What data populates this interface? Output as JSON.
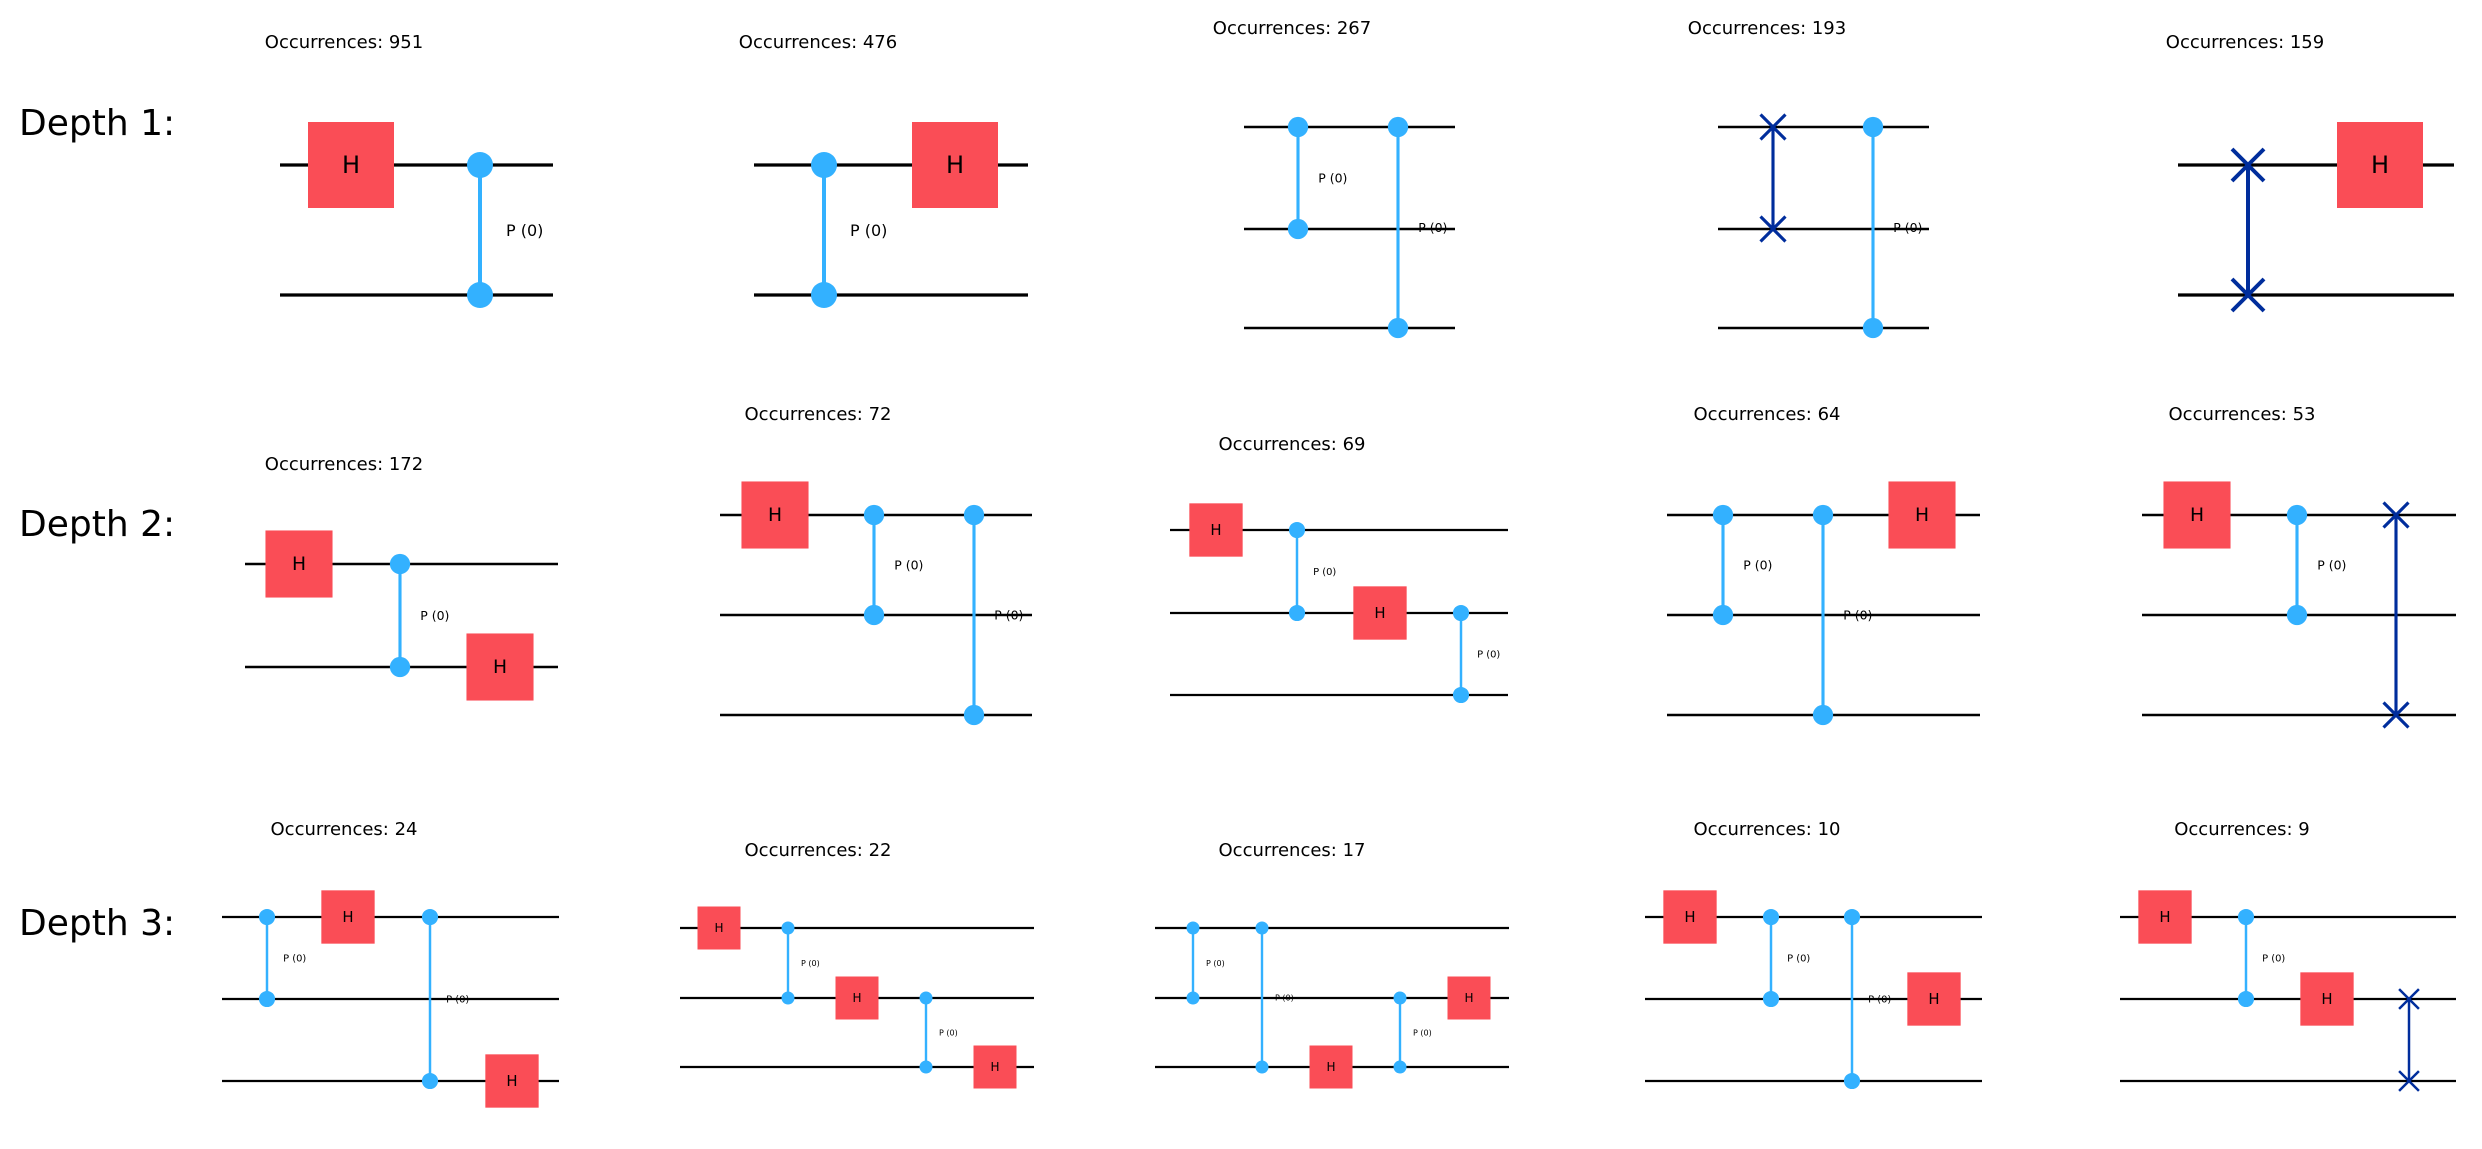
{
  "colors": {
    "wire": "#000000",
    "h_gate": "#FA4D56",
    "p_gate": "#33B1FF",
    "swap": "#002D9C"
  },
  "row_labels": [
    "Depth 1:",
    "Depth 2:",
    "Depth 3:"
  ],
  "occurrence_prefix": "Occurrences: ",
  "panels": [
    {
      "occurrences": 951,
      "qubits": 2,
      "ops": [
        {
          "g": "h",
          "q": [
            0
          ]
        },
        {
          "g": "p",
          "q": [
            0,
            1
          ],
          "label": "P (0)"
        }
      ]
    },
    {
      "occurrences": 476,
      "qubits": 2,
      "ops": [
        {
          "g": "p",
          "q": [
            0,
            1
          ],
          "label": "P (0)"
        },
        {
          "g": "h",
          "q": [
            0
          ]
        }
      ]
    },
    {
      "occurrences": 267,
      "qubits": 3,
      "ops": [
        {
          "g": "p",
          "q": [
            0,
            1
          ],
          "label": "P (0)"
        },
        {
          "g": "p",
          "q": [
            0,
            2
          ],
          "label": "P (0)"
        }
      ]
    },
    {
      "occurrences": 193,
      "qubits": 3,
      "ops": [
        {
          "g": "swap",
          "q": [
            0,
            1
          ]
        },
        {
          "g": "p",
          "q": [
            0,
            2
          ],
          "label": "P (0)"
        }
      ]
    },
    {
      "occurrences": 159,
      "qubits": 2,
      "ops": [
        {
          "g": "swap",
          "q": [
            0,
            1
          ]
        },
        {
          "g": "h",
          "q": [
            0
          ]
        }
      ]
    },
    {
      "occurrences": 172,
      "qubits": 2,
      "ops": [
        {
          "g": "h",
          "q": [
            0
          ]
        },
        {
          "g": "p",
          "q": [
            0,
            1
          ],
          "label": "P (0)"
        },
        {
          "g": "h",
          "q": [
            1
          ]
        }
      ]
    },
    {
      "occurrences": 72,
      "qubits": 3,
      "ops": [
        {
          "g": "h",
          "q": [
            0
          ]
        },
        {
          "g": "p",
          "q": [
            0,
            1
          ],
          "label": "P (0)"
        },
        {
          "g": "p",
          "q": [
            0,
            2
          ],
          "label": "P (0)"
        }
      ]
    },
    {
      "occurrences": 69,
      "qubits": 3,
      "ops": [
        {
          "g": "h",
          "q": [
            0
          ]
        },
        {
          "g": "p",
          "q": [
            0,
            1
          ],
          "label": "P (0)"
        },
        {
          "g": "h",
          "q": [
            1
          ]
        },
        {
          "g": "p",
          "q": [
            1,
            2
          ],
          "label": "P (0)"
        }
      ]
    },
    {
      "occurrences": 64,
      "qubits": 3,
      "ops": [
        {
          "g": "p",
          "q": [
            0,
            1
          ],
          "label": "P (0)"
        },
        {
          "g": "p",
          "q": [
            0,
            2
          ],
          "label": "P (0)"
        },
        {
          "g": "h",
          "q": [
            0
          ]
        }
      ]
    },
    {
      "occurrences": 53,
      "qubits": 3,
      "ops": [
        {
          "g": "h",
          "q": [
            0
          ]
        },
        {
          "g": "p",
          "q": [
            0,
            1
          ],
          "label": "P (0)"
        },
        {
          "g": "swap",
          "q": [
            0,
            2
          ]
        }
      ]
    },
    {
      "occurrences": 24,
      "qubits": 3,
      "ops": [
        {
          "g": "p",
          "q": [
            0,
            1
          ],
          "label": "P (0)"
        },
        {
          "g": "h",
          "q": [
            0
          ]
        },
        {
          "g": "p",
          "q": [
            0,
            2
          ],
          "label": "P (0)"
        },
        {
          "g": "h",
          "q": [
            2
          ]
        }
      ]
    },
    {
      "occurrences": 22,
      "qubits": 3,
      "ops": [
        {
          "g": "h",
          "q": [
            0
          ]
        },
        {
          "g": "p",
          "q": [
            0,
            1
          ],
          "label": "P (0)"
        },
        {
          "g": "h",
          "q": [
            1
          ]
        },
        {
          "g": "p",
          "q": [
            1,
            2
          ],
          "label": "P (0)"
        },
        {
          "g": "h",
          "q": [
            2
          ]
        }
      ]
    },
    {
      "occurrences": 17,
      "qubits": 3,
      "ops": [
        {
          "g": "p",
          "q": [
            0,
            1
          ],
          "label": "P (0)"
        },
        {
          "g": "p",
          "q": [
            0,
            2
          ],
          "label": "P (0)"
        },
        {
          "g": "h",
          "q": [
            2
          ]
        },
        {
          "g": "p",
          "q": [
            1,
            2
          ],
          "label": "P (0)"
        },
        {
          "g": "h",
          "q": [
            1
          ]
        }
      ]
    },
    {
      "occurrences": 10,
      "qubits": 3,
      "ops": [
        {
          "g": "h",
          "q": [
            0
          ]
        },
        {
          "g": "p",
          "q": [
            0,
            1
          ],
          "label": "P (0)"
        },
        {
          "g": "p",
          "q": [
            0,
            2
          ],
          "label": "P (0)"
        },
        {
          "g": "h",
          "q": [
            1
          ]
        }
      ]
    },
    {
      "occurrences": 9,
      "qubits": 3,
      "ops": [
        {
          "g": "h",
          "q": [
            0
          ]
        },
        {
          "g": "p",
          "q": [
            0,
            1
          ],
          "label": "P (0)"
        },
        {
          "g": "h",
          "q": [
            1
          ]
        },
        {
          "g": "swap",
          "q": [
            1,
            2
          ]
        }
      ]
    }
  ]
}
